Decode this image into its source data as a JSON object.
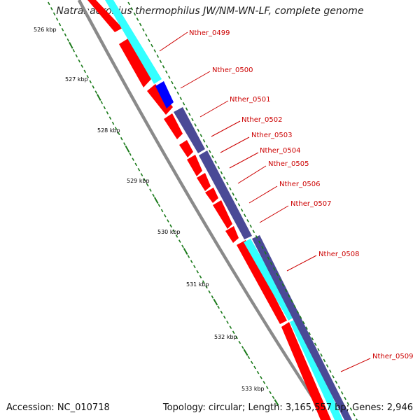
{
  "title": "Natranaerobius thermophilus JW/NM-WN-LF, complete genome",
  "footer": {
    "accession": "Accession: NC_010718",
    "stats": "Topology: circular; Length: 3,165,557 bp; Genes: 2,946"
  },
  "colors": {
    "cds": "#ff0000",
    "cog_cyan": "#33ffff",
    "cog_blue": "#0000ff",
    "cog_slate": "#4a4a96",
    "backbone": "#8a8a8a",
    "tick": "#1a7a1a",
    "label": "#cc0000"
  },
  "scale_ticks": [
    "526 kbp",
    "527 kbp",
    "528 kbp",
    "529 kbp",
    "530 kbp",
    "531 kbp",
    "532 kbp",
    "533 kbp"
  ],
  "gene_labels": [
    "Nther_0499",
    "Nther_0500",
    "Nther_0501",
    "Nther_0502",
    "Nther_0503",
    "Nther_0504",
    "Nther_0505",
    "Nther_0506",
    "Nther_0507",
    "Nther_0508",
    "Nther_0509"
  ]
}
